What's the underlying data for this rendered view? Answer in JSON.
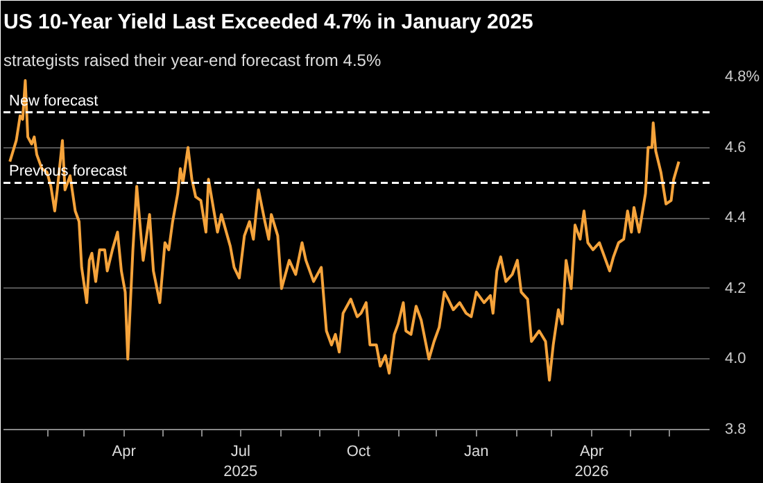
{
  "chart_data": {
    "type": "line",
    "title": "US 10-Year Yield Last Exceeded 4.7% in January 2025",
    "subtitle": "strategists raised their year-end forecast from 4.5%",
    "x": [
      "2025-01-02",
      "2025-01-07",
      "2025-01-10",
      "2025-01-12",
      "2025-01-14",
      "2025-01-16",
      "2025-01-19",
      "2025-01-21",
      "2025-01-23",
      "2025-01-27",
      "2025-01-31",
      "2025-02-03",
      "2025-02-06",
      "2025-02-08",
      "2025-02-12",
      "2025-02-14",
      "2025-02-18",
      "2025-02-22",
      "2025-02-25",
      "2025-02-27",
      "2025-03-03",
      "2025-03-05",
      "2025-03-07",
      "2025-03-10",
      "2025-03-13",
      "2025-03-17",
      "2025-03-19",
      "2025-03-23",
      "2025-03-27",
      "2025-03-30",
      "2025-04-02",
      "2025-04-04",
      "2025-04-08",
      "2025-04-11",
      "2025-04-15",
      "2025-04-16",
      "2025-04-21",
      "2025-04-24",
      "2025-04-29",
      "2025-05-03",
      "2025-05-06",
      "2025-05-09",
      "2025-05-13",
      "2025-05-15",
      "2025-05-17",
      "2025-05-21",
      "2025-05-24",
      "2025-05-27",
      "2025-05-31",
      "2025-06-04",
      "2025-06-06",
      "2025-06-13",
      "2025-06-16",
      "2025-06-23",
      "2025-06-26",
      "2025-06-30",
      "2025-07-04",
      "2025-07-08",
      "2025-07-11",
      "2025-07-15",
      "2025-07-20",
      "2025-07-23",
      "2025-07-25",
      "2025-07-30",
      "2025-08-02",
      "2025-08-08",
      "2025-08-13",
      "2025-08-18",
      "2025-08-21",
      "2025-08-27",
      "2025-09-02",
      "2025-09-06",
      "2025-09-10",
      "2025-09-13",
      "2025-09-16",
      "2025-09-19",
      "2025-09-25",
      "2025-09-30",
      "2025-10-03",
      "2025-10-07",
      "2025-10-10",
      "2025-10-15",
      "2025-10-18",
      "2025-10-22",
      "2025-10-25",
      "2025-10-29",
      "2025-11-01",
      "2025-11-05",
      "2025-11-07",
      "2025-11-11",
      "2025-11-15",
      "2025-11-19",
      "2025-11-25",
      "2025-11-29",
      "2025-12-03",
      "2025-12-07",
      "2025-12-10",
      "2025-12-14",
      "2025-12-19",
      "2025-12-24",
      "2025-12-28",
      "2026-01-01",
      "2026-01-07",
      "2026-01-12",
      "2026-01-14",
      "2026-01-17",
      "2026-01-20",
      "2026-01-24",
      "2026-01-29",
      "2026-02-02",
      "2026-02-05",
      "2026-02-10",
      "2026-02-13",
      "2026-02-19",
      "2026-02-24",
      "2026-02-27",
      "2026-03-02",
      "2026-03-06",
      "2026-03-09",
      "2026-03-12",
      "2026-03-16",
      "2026-03-19",
      "2026-03-23",
      "2026-03-26",
      "2026-03-29",
      "2026-04-02",
      "2026-04-07",
      "2026-04-10",
      "2026-04-15",
      "2026-04-18",
      "2026-04-22",
      "2026-04-26",
      "2026-04-29",
      "2026-05-02",
      "2026-05-04",
      "2026-05-08",
      "2026-05-13",
      "2026-05-15",
      "2026-05-18",
      "2026-05-19",
      "2026-05-21",
      "2026-05-25",
      "2026-05-29",
      "2026-06-02",
      "2026-06-04",
      "2026-06-08"
    ],
    "series": [
      {
        "color": "#f5a33b",
        "values": [
          4.56,
          4.62,
          4.69,
          4.68,
          4.79,
          4.63,
          4.61,
          4.63,
          4.58,
          4.54,
          4.53,
          4.49,
          4.42,
          4.48,
          4.62,
          4.48,
          4.52,
          4.42,
          4.39,
          4.26,
          4.16,
          4.28,
          4.3,
          4.22,
          4.31,
          4.31,
          4.25,
          4.31,
          4.36,
          4.25,
          4.19,
          4.0,
          4.31,
          4.49,
          4.32,
          4.28,
          4.41,
          4.25,
          4.16,
          4.33,
          4.31,
          4.39,
          4.47,
          4.54,
          4.5,
          4.6,
          4.51,
          4.46,
          4.45,
          4.36,
          4.51,
          4.36,
          4.41,
          4.32,
          4.26,
          4.23,
          4.35,
          4.39,
          4.34,
          4.48,
          4.39,
          4.34,
          4.41,
          4.35,
          4.2,
          4.28,
          4.24,
          4.33,
          4.28,
          4.22,
          4.26,
          4.08,
          4.04,
          4.07,
          4.02,
          4.13,
          4.17,
          4.12,
          4.13,
          4.16,
          4.04,
          4.04,
          3.98,
          4.01,
          3.96,
          4.07,
          4.1,
          4.16,
          4.08,
          4.07,
          4.15,
          4.11,
          4.0,
          4.05,
          4.09,
          4.19,
          4.17,
          4.14,
          4.16,
          4.13,
          4.12,
          4.19,
          4.16,
          4.18,
          4.13,
          4.25,
          4.29,
          4.22,
          4.24,
          4.28,
          4.19,
          4.17,
          4.05,
          4.08,
          4.05,
          3.94,
          4.04,
          4.14,
          4.1,
          4.28,
          4.2,
          4.38,
          4.34,
          4.42,
          4.33,
          4.31,
          4.33,
          4.3,
          4.25,
          4.29,
          4.33,
          4.34,
          4.42,
          4.36,
          4.43,
          4.36,
          4.47,
          4.6,
          4.6,
          4.67,
          4.59,
          4.53,
          4.44,
          4.45,
          4.51,
          4.56
        ]
      }
    ],
    "xlim": [
      "2024-12-28",
      "2026-07-02"
    ],
    "xticks": [
      {
        "value": "2025-02-01",
        "label": null
      },
      {
        "value": "2025-03-01",
        "label": null
      },
      {
        "value": "2025-04-01",
        "label": "Apr"
      },
      {
        "value": "2025-05-01",
        "label": null
      },
      {
        "value": "2025-06-01",
        "label": null
      },
      {
        "value": "2025-07-01",
        "label": "Jul\n2025"
      },
      {
        "value": "2025-08-01",
        "label": null
      },
      {
        "value": "2025-09-01",
        "label": null
      },
      {
        "value": "2025-10-01",
        "label": "Oct"
      },
      {
        "value": "2025-11-01",
        "label": null
      },
      {
        "value": "2025-12-01",
        "label": null
      },
      {
        "value": "2026-01-01",
        "label": "Jan"
      },
      {
        "value": "2026-02-01",
        "label": null
      },
      {
        "value": "2026-03-01",
        "label": null
      },
      {
        "value": "2026-04-01",
        "label": "Apr\n2026"
      },
      {
        "value": "2026-05-01",
        "label": null
      },
      {
        "value": "2026-06-01",
        "label": null
      }
    ],
    "ylim": [
      3.8,
      4.8
    ],
    "yticks": [
      3.8,
      {
        "value": 4.0,
        "label": "4.0"
      },
      4.2,
      4.4,
      4.6,
      {
        "value": 4.8,
        "label": "4.8%"
      }
    ],
    "grid": "y",
    "ref_lines": [
      {
        "axis": "y",
        "value": 4.7,
        "label": "New forecast",
        "color": "#ffffff",
        "line_style": "dashed"
      },
      {
        "axis": "y",
        "value": 4.5,
        "label": "Previous forecast",
        "color": "#ffffff",
        "line_style": "dashed"
      }
    ]
  }
}
